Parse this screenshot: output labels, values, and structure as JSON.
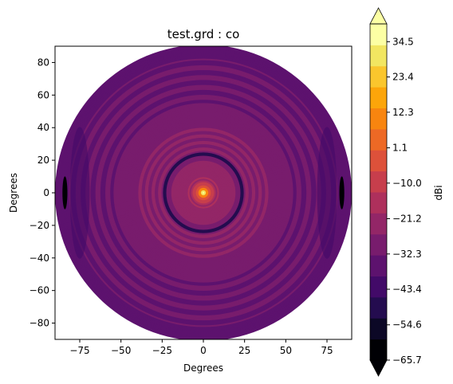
{
  "chart_data": {
    "type": "heatmap",
    "title": "test.grd : co",
    "xlabel": "Degrees",
    "ylabel": "Degrees",
    "xlim": [
      -90,
      90
    ],
    "ylim": [
      -90,
      90
    ],
    "xticks": [
      -75,
      -50,
      -25,
      0,
      25,
      50,
      75
    ],
    "yticks": [
      -80,
      -60,
      -40,
      -20,
      0,
      20,
      40,
      60,
      80
    ],
    "data_region_radius_deg": 90,
    "peak_location": [
      0,
      0
    ],
    "peak_value": 40,
    "colorbar": {
      "label": "dBi",
      "colormap": "inferno",
      "min": -65.7,
      "max": 40.1,
      "levels": 19,
      "tick_values": [
        -65.7,
        -54.6,
        -43.4,
        -32.3,
        -21.2,
        -10.0,
        1.1,
        12.3,
        23.4,
        34.5
      ],
      "tick_labels": [
        "−65.7",
        "−54.6",
        "−43.4",
        "−32.3",
        "−21.2",
        "−10.0",
        "1.1",
        "12.3",
        "23.4",
        "34.5"
      ],
      "extend": "both"
    }
  },
  "colors": {
    "band_colors": [
      "#000004",
      "#0c0826",
      "#240c4f",
      "#420a68",
      "#5d126e",
      "#781c6d",
      "#932667",
      "#ae305c",
      "#c73e4c",
      "#dd513a",
      "#ed6925",
      "#f8850f",
      "#fca50a",
      "#fac62d",
      "#f2e661",
      "#fcffa4"
    ],
    "under": "#000004",
    "over": "#fcffa4"
  }
}
